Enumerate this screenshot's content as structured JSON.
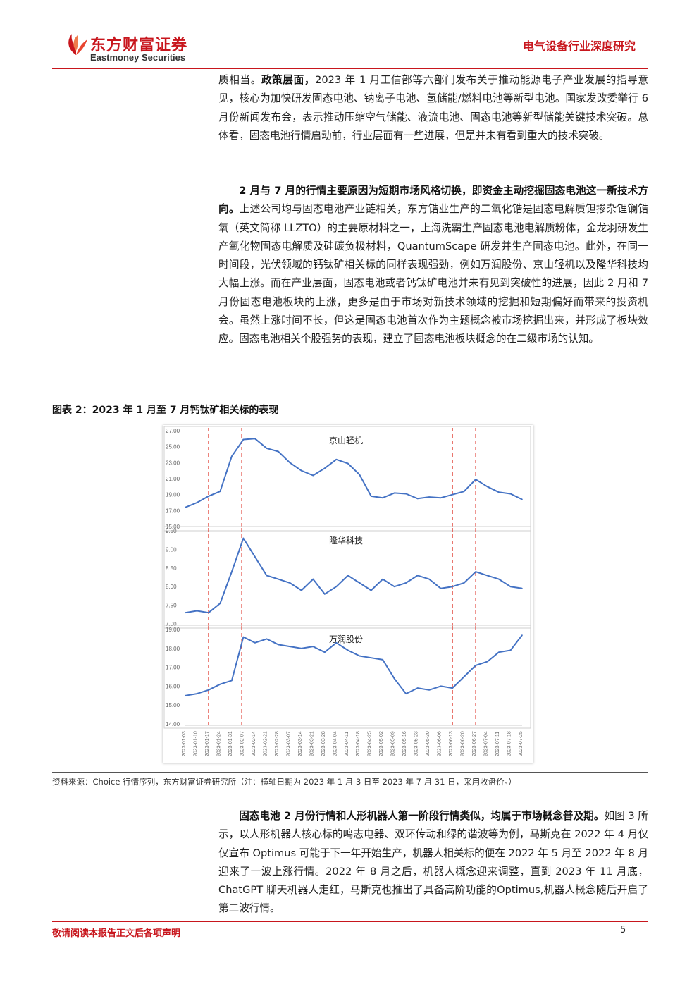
{
  "header": {
    "logo_cn": "东方财富证券",
    "logo_en": "Eastmoney Securities",
    "report_type": "电气设备行业深度研究"
  },
  "para1": {
    "text1": "质相当。",
    "bold1": "政策层面，",
    "text2": "2023 年 1 月工信部等六部门发布关于推动能源电子产业发展的指导意见，核心为加快研发固态电池、钠离子电池、氢储能/燃料电池等新型电池。国家发改委举行 6 月份新闻发布会，表示推动压缩空气储能、液流电池、固态电池等新型储能关键技术突破。总体看，固态电池行情启动前，行业层面有一些进展，但是并未有看到重大的技术突破。"
  },
  "para2": {
    "bold": "2 月与 7 月的行情主要原因为短期市场风格切换，即资金主动挖掘固态电池这一新技术方向。",
    "text": "上述公司均与固态电池产业链相关，东方锆业生产的二氧化锆是固态电解质钽掺杂锂镧锆氧（英文简称 LLZTO）的主要原材料之一，上海洗霸生产固态电池电解质粉体，金龙羽研发生产氧化物固态电解质及硅碳负极材料，QuantumScape 研发并生产固态电池。此外，在同一时间段，光伏领域的钙钛矿相关标的同样表现强劲，例如万润股份、京山轻机以及隆华科技均大幅上涨。而在产业层面，固态电池或者钙钛矿电池并未有见到突破性的进展，因此 2 月和 7 月份固态电池板块的上涨，更多是由于市场对新技术领域的挖掘和短期偏好而带来的投资机会。虽然上涨时间不长，但这是固态电池首次作为主题概念被市场挖掘出来，并形成了板块效应。固态电池相关个股强势的表现，建立了固态电池板块概念的在二级市场的认知。"
  },
  "figure": {
    "title": "图表 2：2023 年 1 月至 7 月钙钛矿相关标的表现",
    "source": "资料来源：Choice 行情序列，东方财富证券研究所（注：横轴日期为 2023 年 1 月 3 日至 2023 年 7 月 31 日，采用收盘价。）"
  },
  "chart_data": [
    {
      "type": "line",
      "title": "京山轻机",
      "ylim": [
        15,
        27
      ],
      "yticks": [
        "27.00",
        "25.00",
        "23.00",
        "21.00",
        "19.00",
        "17.00",
        "15.00"
      ],
      "color": "#4472c4",
      "x": [
        "2023-01-03",
        "2023-01-10",
        "2023-01-17",
        "2023-01-24",
        "2023-01-31",
        "2023-02-07",
        "2023-02-14",
        "2023-02-21",
        "2023-02-28",
        "2023-03-07",
        "2023-03-14",
        "2023-03-21",
        "2023-03-28",
        "2023-04-04",
        "2023-04-11",
        "2023-04-18",
        "2023-04-25",
        "2023-05-02",
        "2023-05-09",
        "2023-05-16",
        "2023-05-23",
        "2023-05-30",
        "2023-06-06",
        "2023-06-13",
        "2023-06-20",
        "2023-06-27",
        "2023-07-04",
        "2023-07-11",
        "2023-07-18",
        "2023-07-25"
      ],
      "values": [
        17.4,
        18.0,
        18.8,
        19.4,
        23.8,
        25.9,
        26.0,
        24.8,
        24.4,
        23.0,
        22.0,
        21.4,
        22.3,
        23.4,
        22.9,
        21.5,
        18.8,
        18.6,
        19.2,
        19.1,
        18.5,
        18.7,
        18.6,
        19.0,
        19.4,
        20.9,
        20.0,
        19.3,
        19.1,
        18.4
      ],
      "markers": [
        "2023-01-17",
        "2023-02-06",
        "2023-06-13",
        "2023-06-27"
      ]
    },
    {
      "type": "line",
      "title": "隆华科技",
      "ylim": [
        7.0,
        9.5
      ],
      "yticks": [
        "9.50",
        "9.00",
        "8.50",
        "8.00",
        "7.50",
        "7.00"
      ],
      "color": "#4472c4",
      "x": [
        "2023-01-03",
        "2023-01-10",
        "2023-01-17",
        "2023-01-24",
        "2023-01-31",
        "2023-02-07",
        "2023-02-14",
        "2023-02-21",
        "2023-02-28",
        "2023-03-07",
        "2023-03-14",
        "2023-03-21",
        "2023-03-28",
        "2023-04-04",
        "2023-04-11",
        "2023-04-18",
        "2023-04-25",
        "2023-05-02",
        "2023-05-09",
        "2023-05-16",
        "2023-05-23",
        "2023-05-30",
        "2023-06-06",
        "2023-06-13",
        "2023-06-20",
        "2023-06-27",
        "2023-07-04",
        "2023-07-11",
        "2023-07-18",
        "2023-07-25"
      ],
      "values": [
        7.3,
        7.35,
        7.3,
        7.55,
        8.4,
        9.3,
        8.8,
        8.3,
        8.2,
        8.1,
        7.9,
        8.2,
        7.8,
        8.0,
        8.3,
        8.1,
        7.9,
        8.2,
        8.0,
        8.1,
        8.3,
        8.2,
        7.95,
        8.0,
        8.1,
        8.4,
        8.3,
        8.2,
        8.0,
        7.95
      ],
      "markers": [
        "2023-01-17",
        "2023-02-06",
        "2023-06-13",
        "2023-06-27"
      ]
    },
    {
      "type": "line",
      "title": "万润股份",
      "ylim": [
        14.0,
        19.0
      ],
      "yticks": [
        "19.00",
        "18.00",
        "17.00",
        "16.00",
        "15.00",
        "14.00"
      ],
      "color": "#4472c4",
      "x": [
        "2023-01-03",
        "2023-01-10",
        "2023-01-17",
        "2023-01-24",
        "2023-01-31",
        "2023-02-07",
        "2023-02-14",
        "2023-02-21",
        "2023-02-28",
        "2023-03-07",
        "2023-03-14",
        "2023-03-21",
        "2023-03-28",
        "2023-04-04",
        "2023-04-11",
        "2023-04-18",
        "2023-04-25",
        "2023-05-02",
        "2023-05-09",
        "2023-05-16",
        "2023-05-23",
        "2023-05-30",
        "2023-06-06",
        "2023-06-13",
        "2023-06-20",
        "2023-06-27",
        "2023-07-04",
        "2023-07-11",
        "2023-07-18",
        "2023-07-25"
      ],
      "values": [
        15.5,
        15.6,
        15.8,
        16.1,
        16.3,
        18.6,
        18.3,
        18.5,
        18.2,
        18.1,
        18.0,
        18.1,
        17.8,
        18.3,
        17.9,
        17.6,
        17.5,
        17.4,
        16.4,
        15.6,
        15.9,
        15.8,
        16.0,
        15.9,
        16.5,
        17.1,
        17.3,
        17.8,
        17.9,
        18.7
      ],
      "markers": [
        "2023-01-17",
        "2023-02-06",
        "2023-06-13",
        "2023-06-27"
      ]
    }
  ],
  "para3": {
    "bold": "固态电池 2 月份行情和人形机器人第一阶段行情类似，均属于市场概念普及期。",
    "text": "如图 3 所示，以人形机器人核心标的鸣志电器、双环传动和绿的谐波等为例，马斯克在 2022 年 4 月仅仅宣布 Optimus 可能于下一年开始生产，机器人相关标的便在 2022 年 5 月至 2022 年 8 月迎来了一波上涨行情。2022 年 8 月之后，机器人概念迎来调整，直到 2023 年 11 月底，ChatGPT 聊天机器人走红，马斯克也推出了具备高阶功能的Optimus,机器人概念随后开启了第二波行情。"
  },
  "footer": {
    "disclaimer": "敬请阅读本报告正文后各项声明",
    "page_number": "5"
  }
}
